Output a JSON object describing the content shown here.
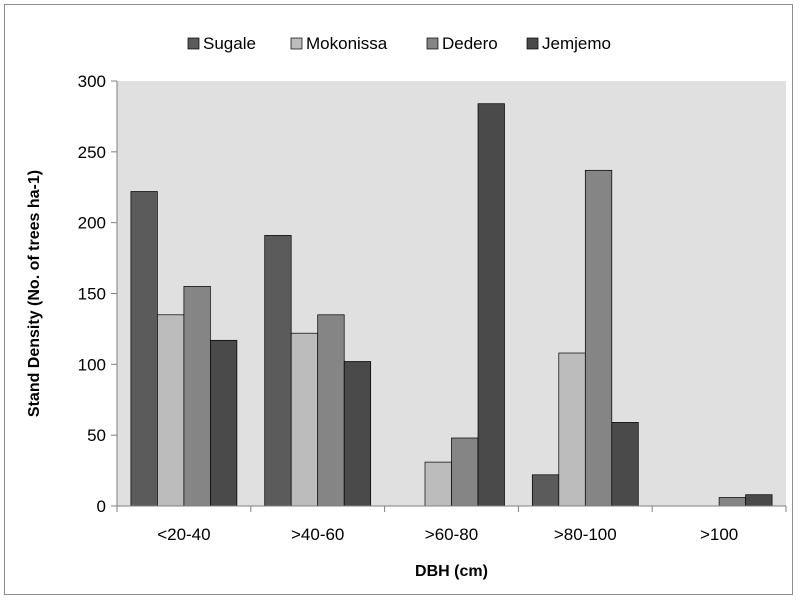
{
  "chart_data": {
    "type": "bar",
    "title": "",
    "xlabel": "DBH (cm)",
    "ylabel": "Stand Density (No. of trees ha-1)",
    "categories": [
      "<20-40",
      ">40-60",
      ">60-80",
      ">80-100",
      ">100"
    ],
    "ylim": [
      0,
      300
    ],
    "yticks": [
      0,
      50,
      100,
      150,
      200,
      250,
      300
    ],
    "grid": false,
    "legend_position": "top",
    "plot_background": "#e0e0e0",
    "series": [
      {
        "name": "Sugale",
        "color": "#5b5b5b",
        "values": [
          222,
          191,
          0,
          22,
          0
        ]
      },
      {
        "name": "Mokonissa",
        "color": "#bcbcbc",
        "values": [
          135,
          122,
          31,
          108,
          0
        ]
      },
      {
        "name": "Dedero",
        "color": "#858585",
        "values": [
          155,
          135,
          48,
          237,
          6
        ]
      },
      {
        "name": "Jemjemo",
        "color": "#4a4a4a",
        "values": [
          117,
          102,
          284,
          59,
          8
        ]
      }
    ]
  }
}
